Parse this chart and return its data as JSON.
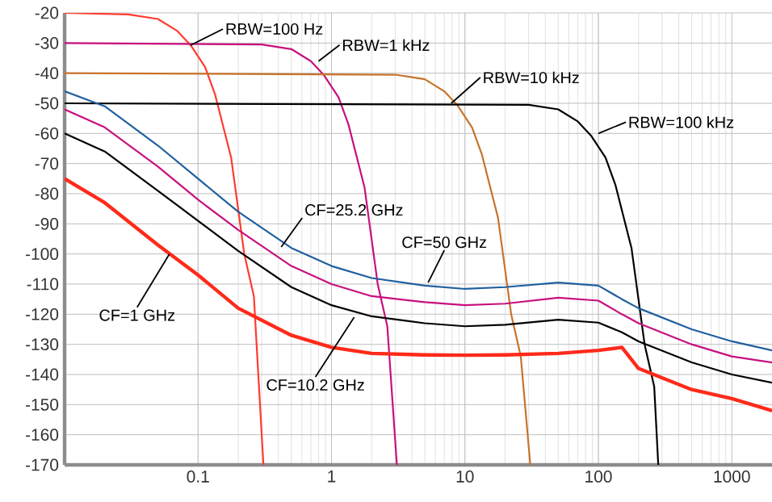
{
  "chart_data": {
    "type": "line",
    "log": "x",
    "grid": true,
    "xlim": [
      0.01,
      2000
    ],
    "ylim": [
      -170,
      -20
    ],
    "xticks": [
      0.1,
      1,
      10,
      100,
      1000
    ],
    "yticks": [
      -170,
      -160,
      -150,
      -140,
      -130,
      -120,
      -110,
      -100,
      -90,
      -80,
      -70,
      -60,
      -50,
      -40,
      -30,
      -20
    ],
    "series": [
      {
        "color": "#ff3b2f",
        "x": [
          0.01,
          0.03,
          0.05,
          0.07,
          0.088,
          0.113,
          0.134,
          0.177,
          0.222,
          0.262,
          0.309
        ],
        "values": [
          -20,
          -20.5,
          -22,
          -26,
          -30.7,
          -38,
          -47,
          -68,
          -100,
          -114,
          -170
        ]
      },
      {
        "color": "#c8107e",
        "x": [
          0.01,
          0.3,
          0.5,
          0.7,
          0.88,
          1.13,
          1.34,
          1.77,
          2.22,
          2.62,
          3.09
        ],
        "values": [
          -30,
          -30.5,
          -32,
          -36,
          -40.7,
          -48,
          -57,
          -78,
          -110,
          -124,
          -170
        ]
      },
      {
        "color": "#c8732a",
        "x": [
          0.01,
          3,
          5,
          7,
          8.8,
          11.3,
          13.4,
          17.7,
          22.2,
          26.2,
          30.9
        ],
        "values": [
          -40,
          -40.5,
          -42,
          -46,
          -50.7,
          -58,
          -67,
          -88,
          -120,
          -134,
          -170
        ]
      },
      {
        "color": "#000000",
        "x": [
          0.01,
          30,
          50,
          70,
          88,
          113,
          134,
          177,
          222,
          262,
          281
        ],
        "values": [
          -50,
          -50.5,
          -52,
          -56,
          -60.7,
          -68,
          -77,
          -98,
          -130,
          -144,
          -170
        ]
      },
      {
        "color": "#1f5f9f",
        "x": [
          0.01,
          0.02,
          0.05,
          0.1,
          0.2,
          0.5,
          1,
          2,
          5,
          10,
          20,
          50,
          100,
          150,
          200,
          500,
          1000,
          2000
        ],
        "values": [
          -46,
          -51,
          -64,
          -75,
          -86,
          -98,
          -104,
          -108,
          -110.5,
          -111.6,
          -111,
          -109.5,
          -110.5,
          -115,
          -118,
          -125,
          -129,
          -132
        ]
      },
      {
        "color": "#c8107e",
        "x": [
          0.01,
          0.02,
          0.05,
          0.1,
          0.2,
          0.5,
          1,
          2,
          5,
          10,
          20,
          50,
          100,
          150,
          200,
          500,
          1000,
          2000
        ],
        "values": [
          -52,
          -58,
          -71,
          -82,
          -92,
          -104,
          -110,
          -114,
          -116,
          -117,
          -116.5,
          -114.5,
          -115.5,
          -120,
          -123,
          -130,
          -134,
          -136
        ]
      },
      {
        "color": "#000000",
        "x": [
          0.01,
          0.02,
          0.05,
          0.1,
          0.2,
          0.5,
          1,
          2,
          5,
          10,
          20,
          50,
          100,
          150,
          200,
          500,
          1000,
          2000
        ],
        "values": [
          -60,
          -66,
          -79,
          -89,
          -99,
          -111,
          -117,
          -120.7,
          -123,
          -124,
          -123.5,
          -121.8,
          -122.8,
          -126,
          -129,
          -136,
          -140,
          -142.7
        ]
      },
      {
        "color": "#ff2a1a",
        "x": [
          0.01,
          0.02,
          0.05,
          0.1,
          0.2,
          0.5,
          1,
          2,
          5,
          10,
          20,
          50,
          100,
          150,
          200,
          500,
          1000,
          2000
        ],
        "values": [
          -75,
          -83,
          -97,
          -107,
          -118,
          -127,
          -131,
          -133,
          -133.5,
          -133.6,
          -133.5,
          -133,
          -132,
          -131,
          -138,
          -145,
          -148,
          -152
        ]
      }
    ],
    "annotations": [
      {
        "text": "RBW=100 Hz",
        "x": 0.088,
        "y": -30.7
      },
      {
        "text": "RBW=1 kHz",
        "x": 0.8,
        "y": -36
      },
      {
        "text": "RBW=10 kHz",
        "x": 7.9,
        "y": -50
      },
      {
        "text": "RBW=100 kHz",
        "x": 100,
        "y": -60
      },
      {
        "text": "CF=25.2 GHz",
        "x": 0.42,
        "y": -97.7
      },
      {
        "text": "CF=50 GHz",
        "x": 5.3,
        "y": -109.5
      },
      {
        "text": "CF=1 GHz",
        "x": 0.061,
        "y": -100
      },
      {
        "text": "CF=10.2 GHz",
        "x": 1.48,
        "y": -121
      }
    ]
  }
}
